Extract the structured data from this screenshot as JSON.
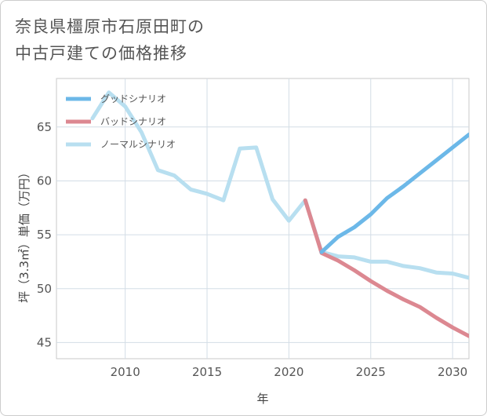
{
  "title": {
    "line1": "奈良県橿原市石原田町の",
    "line2": "中古戸建ての価格推移"
  },
  "chart_data": {
    "type": "line",
    "xlabel": "年",
    "ylabel": "坪（3.3㎡）単価（万円）",
    "xlim": [
      2005.8,
      2031
    ],
    "ylim": [
      43.5,
      69.5
    ],
    "xticks": [
      2010,
      2015,
      2020,
      2025,
      2030
    ],
    "yticks": [
      45,
      50,
      55,
      60,
      65
    ],
    "grid": true,
    "legend_position": "top-left",
    "series": [
      {
        "name": "グッドシナリオ",
        "color": "#6cb8e8",
        "x": [
          2022,
          2023,
          2024,
          2025,
          2026,
          2027,
          2028,
          2029,
          2030,
          2031
        ],
        "y": [
          53.4,
          54.8,
          55.7,
          56.9,
          58.4,
          59.5,
          60.7,
          61.9,
          63.1,
          64.3
        ]
      },
      {
        "name": "バッドシナリオ",
        "color": "#dc8891",
        "x": [
          2021,
          2022,
          2023,
          2024,
          2025,
          2026,
          2027,
          2028,
          2029,
          2030,
          2031
        ],
        "y": [
          58.2,
          53.3,
          52.6,
          51.7,
          50.7,
          49.8,
          49.0,
          48.3,
          47.3,
          46.4,
          45.6
        ]
      },
      {
        "name": "ノーマルシナリオ",
        "color": "#b8dff0",
        "x": [
          2008,
          2009,
          2010,
          2011,
          2012,
          2013,
          2014,
          2015,
          2016,
          2017,
          2018,
          2019,
          2020,
          2021,
          2022,
          2023,
          2024,
          2025,
          2026,
          2027,
          2028,
          2029,
          2030,
          2031
        ],
        "y": [
          65.8,
          68.2,
          66.9,
          64.5,
          61.0,
          60.5,
          59.2,
          58.8,
          58.2,
          63.0,
          63.1,
          58.3,
          56.3,
          58.2,
          53.4,
          53.0,
          52.9,
          52.5,
          52.5,
          52.1,
          51.9,
          51.5,
          51.4,
          51.0
        ]
      }
    ]
  }
}
